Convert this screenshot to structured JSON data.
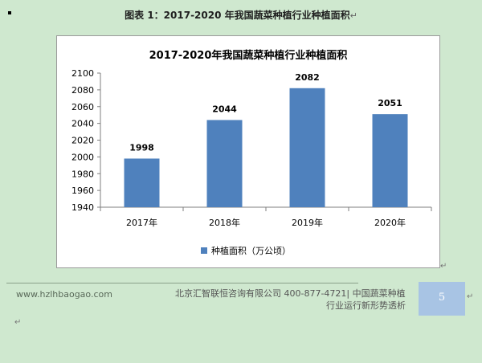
{
  "caption": "图表 1：2017-2020 年我国蔬菜种植行业种植面积",
  "paragraph_mark": "↵",
  "chart_data": {
    "type": "bar",
    "title": "2017-2020年我国蔬菜种植行业种植面积",
    "categories": [
      "2017年",
      "2018年",
      "2019年",
      "2020年"
    ],
    "series": [
      {
        "name": "种植面积（万公顷）",
        "values": [
          1998,
          2044,
          2082,
          2051
        ],
        "color": "#4f81bd"
      }
    ],
    "data_labels": [
      "1998",
      "2044",
      "2082",
      "2051"
    ],
    "ylim": [
      1940,
      2100
    ],
    "yticks": [
      1940,
      1960,
      1980,
      2000,
      2020,
      2040,
      2060,
      2080,
      2100
    ],
    "ytick_labels": [
      "1940",
      "1960",
      "1980",
      "2000",
      "2020",
      "2040",
      "2060",
      "2080",
      "2100"
    ],
    "xlabel": "",
    "ylabel": "",
    "grid": false,
    "legend_position": "bottom"
  },
  "footer": {
    "url": "www.hzlhbaogao.com",
    "company_line1": "北京汇智联恒咨询有限公司  400-877-4721| 中国蔬菜种植",
    "company_line2": "行业运行新形势透析",
    "page_number": "5"
  }
}
